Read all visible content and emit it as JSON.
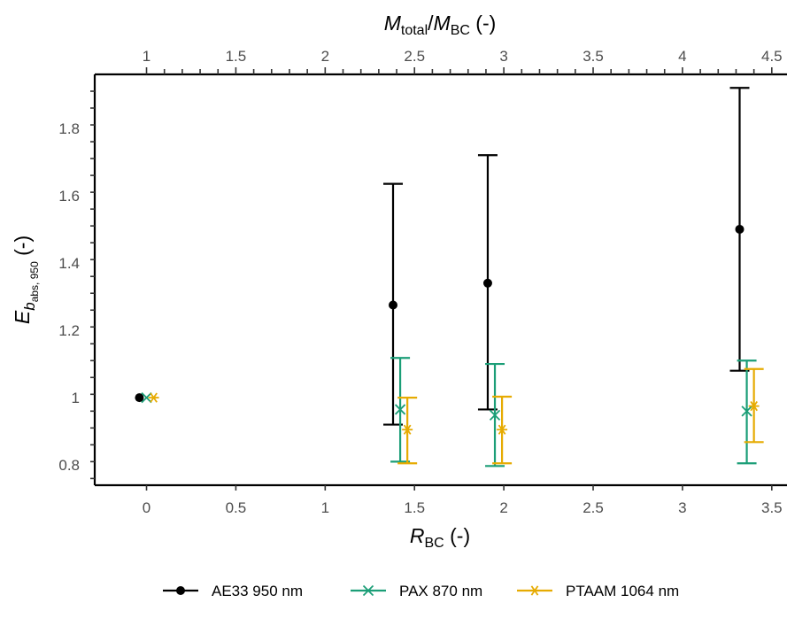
{
  "chart_data": {
    "type": "scatter",
    "title": "",
    "x_axis": {
      "label_main": "R",
      "label_sub": "BC",
      "label_suffix": " (-)",
      "range": [
        -0.29,
        3.6
      ],
      "ticks": [
        0,
        0.5,
        1,
        1.5,
        2,
        2.5,
        3,
        3.5
      ],
      "tick_labels": [
        "0",
        "0.5",
        "1",
        "1.5",
        "2",
        "2.5",
        "3",
        "3.5"
      ]
    },
    "x2_axis": {
      "label_num": "M",
      "label_num_sub": "total",
      "label_den": "M",
      "label_den_sub": "BC",
      "label_suffix": " (-)",
      "ticks": [
        1,
        1.5,
        2,
        2.5,
        3,
        3.5,
        4,
        4.5
      ],
      "tick_labels": [
        "1",
        "1.5",
        "2",
        "2.5",
        "3",
        "3.5",
        "4",
        "4.5"
      ],
      "offset": 1
    },
    "y_axis": {
      "label_main": "E",
      "label_sub1": "b",
      "label_sub2": "abs, 950",
      "label_suffix": " (-)",
      "range": [
        0.74,
        1.96
      ],
      "ticks": [
        0.8,
        1,
        1.2,
        1.4,
        1.6,
        1.8
      ],
      "tick_labels": [
        "0.8",
        "1",
        "1.2",
        "1.4",
        "1.6",
        "1.8"
      ]
    },
    "grid": false,
    "legend_position": "bottom",
    "series": [
      {
        "name": "AE33 950 nm",
        "color": "#000000",
        "marker": "circle",
        "dodge": -0.04,
        "points": [
          {
            "x": 0,
            "y": 1.0,
            "ymin": null,
            "ymax": null
          },
          {
            "x": 1.42,
            "y": 1.275,
            "ymin": 0.92,
            "ymax": 1.635
          },
          {
            "x": 1.95,
            "y": 1.34,
            "ymin": 0.965,
            "ymax": 1.72
          },
          {
            "x": 3.36,
            "y": 1.5,
            "ymin": 1.08,
            "ymax": 1.92
          }
        ]
      },
      {
        "name": "PAX 870 nm",
        "color": "#1b9e77",
        "marker": "x",
        "dodge": 0,
        "points": [
          {
            "x": 0,
            "y": 1.0,
            "ymin": null,
            "ymax": null
          },
          {
            "x": 1.42,
            "y": 0.965,
            "ymin": 0.81,
            "ymax": 1.118
          },
          {
            "x": 1.95,
            "y": 0.948,
            "ymin": 0.797,
            "ymax": 1.1
          },
          {
            "x": 3.36,
            "y": 0.96,
            "ymin": 0.805,
            "ymax": 1.11
          }
        ]
      },
      {
        "name": "PTAAM 1064 nm",
        "color": "#e6ab02",
        "marker": "asterisk",
        "dodge": 0.04,
        "points": [
          {
            "x": 0,
            "y": 1.0,
            "ymin": null,
            "ymax": null
          },
          {
            "x": 1.42,
            "y": 0.905,
            "ymin": 0.805,
            "ymax": 1.0
          },
          {
            "x": 1.95,
            "y": 0.905,
            "ymin": 0.805,
            "ymax": 1.003
          },
          {
            "x": 3.36,
            "y": 0.975,
            "ymin": 0.868,
            "ymax": 1.085
          }
        ]
      }
    ]
  }
}
